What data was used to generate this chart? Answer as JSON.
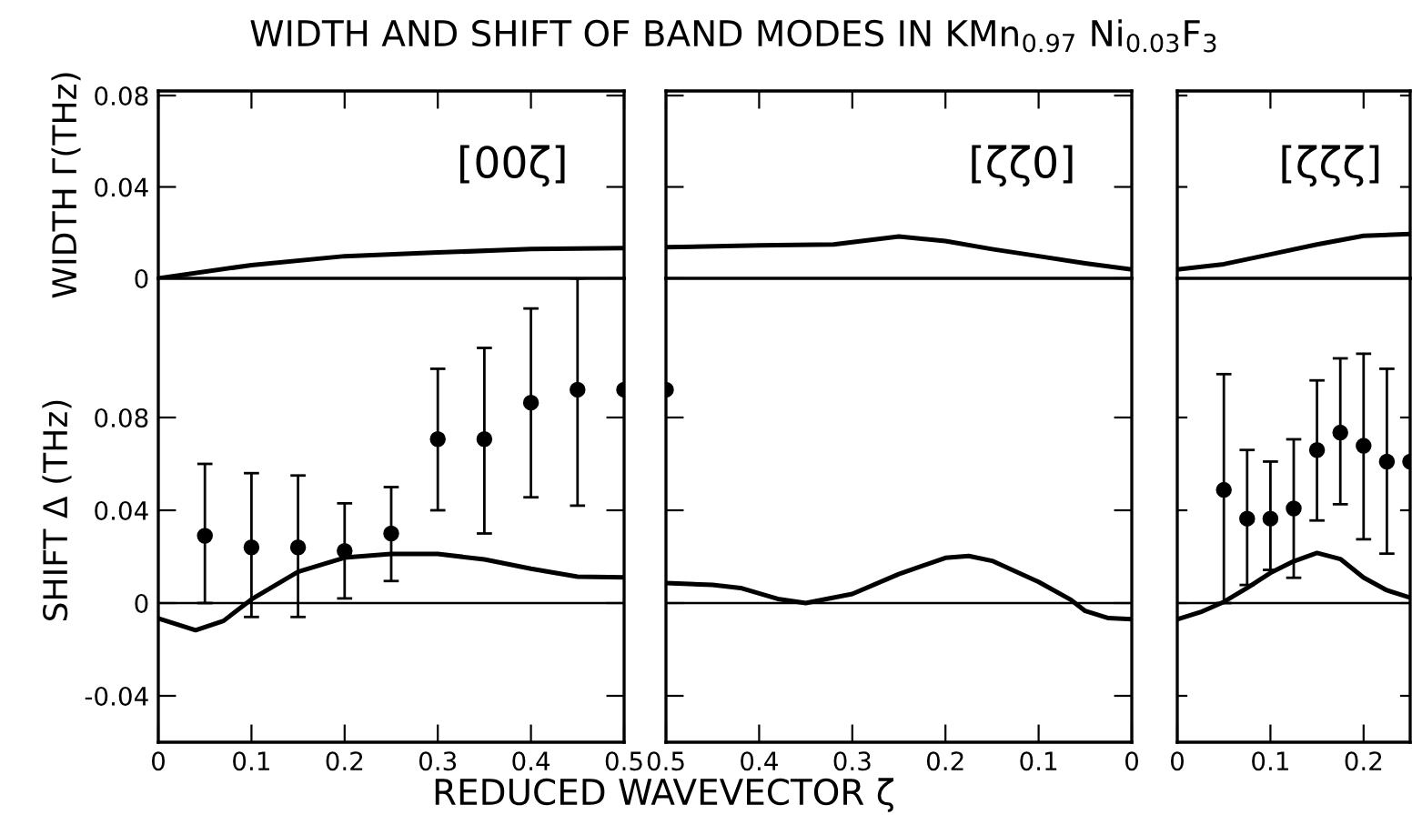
{
  "chart_data": [
    {
      "type": "line",
      "title": "WIDTH AND SHIFT OF BAND MODES IN KMn$_{0.97}$ Ni$_{0.03}$F$_{3}$",
      "ylabel": "WIDTH Γ(THz)",
      "annotations": [
        "[00ζ]"
      ],
      "xlim": [
        0,
        0.5
      ],
      "xticks": [
        0,
        0.1,
        0.2,
        0.3,
        0.4,
        0.5
      ],
      "ylim": [
        0,
        0.082
      ],
      "yticks": [
        0,
        0.04,
        0.08
      ],
      "tick_labels": "y",
      "grid": false,
      "legend": false,
      "series": [
        {
          "color": "#000000",
          "x": [
            0,
            0.1,
            0.2,
            0.3,
            0.4,
            0.5
          ],
          "values": [
            0,
            0.0058,
            0.0097,
            0.0113,
            0.0128,
            0.0132
          ]
        }
      ]
    },
    {
      "type": "line",
      "annotations": [
        "[ζζ0]"
      ],
      "xlim": [
        0.5,
        0
      ],
      "xticks": [
        0.5,
        0.4,
        0.3,
        0.2,
        0.1,
        0
      ],
      "ylim": [
        0,
        0.082
      ],
      "yticks": [
        0,
        0.04,
        0.08
      ],
      "tick_labels": false,
      "grid": false,
      "legend": false,
      "series": [
        {
          "color": "#000000",
          "x": [
            0.5,
            0.4,
            0.32,
            0.25,
            0.2,
            0.15,
            0.1,
            0.05,
            0
          ],
          "values": [
            0.0136,
            0.0144,
            0.0148,
            0.0183,
            0.0163,
            0.0128,
            0.0097,
            0.0066,
            0.0039
          ]
        }
      ]
    },
    {
      "type": "line",
      "annotations": [
        "[ζζζ]"
      ],
      "xlim": [
        0,
        0.25
      ],
      "xticks": [
        0,
        0.1,
        0.2
      ],
      "ylim": [
        0,
        0.082
      ],
      "yticks": [
        0,
        0.04,
        0.08
      ],
      "tick_labels": false,
      "grid": false,
      "legend": false,
      "series": [
        {
          "color": "#000000",
          "x": [
            0,
            0.05,
            0.1,
            0.15,
            0.2,
            0.25
          ],
          "values": [
            0.0039,
            0.0062,
            0.0105,
            0.0148,
            0.0186,
            0.0194
          ]
        }
      ]
    },
    {
      "type": "line",
      "ylabel": "SHIFT Δ (THz)",
      "xlim": [
        0,
        0.5
      ],
      "xticks": [
        0,
        0.1,
        0.2,
        0.3,
        0.4,
        0.5
      ],
      "ylim": [
        -0.06,
        0.14
      ],
      "yticks": [
        -0.04,
        0,
        0.04,
        0.08
      ],
      "grid": false,
      "legend": false,
      "ref_lines": [
        {
          "axis": "y",
          "value": 0,
          "color": "#000000"
        }
      ],
      "series": [
        {
          "color": "#000000",
          "x": [
            0,
            0.04,
            0.07,
            0.1,
            0.15,
            0.2,
            0.25,
            0.3,
            0.35,
            0.4,
            0.45,
            0.5
          ],
          "values": [
            -0.0066,
            -0.0117,
            -0.0077,
            0.0016,
            0.0135,
            0.0196,
            0.0212,
            0.0212,
            0.0188,
            0.0148,
            0.0114,
            0.0111
          ]
        },
        {
          "type": "scatter",
          "marker": "circle",
          "color": "#000000",
          "x": [
            0.05,
            0.1,
            0.15,
            0.2,
            0.25,
            0.3,
            0.35,
            0.4,
            0.45,
            0.5
          ],
          "values": [
            0.029,
            0.024,
            0.024,
            0.0225,
            0.03,
            0.0707,
            0.0707,
            0.0864,
            0.092,
            0.092
          ],
          "errors": [
            [
              0,
              0.06
            ],
            [
              -0.006,
              0.056
            ],
            [
              -0.006,
              0.055
            ],
            [
              0.002,
              0.043
            ],
            [
              0.0095,
              0.05
            ],
            [
              0.04,
              0.101
            ],
            [
              0.03,
              0.11
            ],
            [
              0.0456,
              0.127
            ],
            [
              0.042,
              0.14
            ],
            null
          ]
        }
      ]
    },
    {
      "type": "line",
      "xlabel": "REDUCED WAVEVECTOR ζ",
      "xlim": [
        0.5,
        0
      ],
      "xticks": [
        0.5,
        0.4,
        0.3,
        0.2,
        0.1,
        0
      ],
      "ylim": [
        -0.06,
        0.14
      ],
      "yticks": [
        -0.04,
        0,
        0.04,
        0.08
      ],
      "tick_labels": "x",
      "grid": false,
      "legend": false,
      "ref_lines": [
        {
          "axis": "y",
          "value": 0,
          "color": "#000000"
        }
      ],
      "series": [
        {
          "color": "#000000",
          "x": [
            0.5,
            0.45,
            0.42,
            0.38,
            0.35,
            0.3,
            0.25,
            0.2,
            0.175,
            0.15,
            0.1,
            0.065,
            0.05,
            0.025,
            0
          ],
          "values": [
            0.0086,
            0.0078,
            0.0065,
            0.0018,
            0,
            0.0039,
            0.0125,
            0.0195,
            0.0203,
            0.0182,
            0.0091,
            0.0013,
            -0.0034,
            -0.0065,
            -0.007
          ]
        },
        {
          "type": "scatter",
          "marker": "circle",
          "color": "#000000",
          "x": [
            0.5
          ],
          "values": [
            0.092
          ]
        }
      ]
    },
    {
      "type": "line",
      "xlim": [
        0,
        0.25
      ],
      "xticks": [
        0,
        0.1,
        0.2
      ],
      "ylim": [
        -0.06,
        0.14
      ],
      "yticks": [
        -0.04,
        0,
        0.04,
        0.08
      ],
      "tick_labels": "x",
      "grid": false,
      "legend": false,
      "ref_lines": [
        {
          "axis": "y",
          "value": 0,
          "color": "#000000"
        }
      ],
      "series": [
        {
          "color": "#000000",
          "x": [
            0,
            0.025,
            0.05,
            0.075,
            0.1,
            0.125,
            0.15,
            0.175,
            0.2,
            0.225,
            0.248
          ],
          "values": [
            -0.007,
            -0.0039,
            0.0005,
            0.0065,
            0.013,
            0.018,
            0.0216,
            0.019,
            0.011,
            0.0055,
            0.0026
          ]
        },
        {
          "type": "scatter",
          "marker": "circle",
          "color": "#000000",
          "x": [
            0.05,
            0.075,
            0.1,
            0.125,
            0.15,
            0.175,
            0.2,
            0.225,
            0.25
          ],
          "values": [
            0.0488,
            0.0364,
            0.0364,
            0.0408,
            0.066,
            0.0735,
            0.0678,
            0.061,
            0.061
          ],
          "errors": [
            [
              0,
              0.0987
            ],
            [
              0.0078,
              0.066
            ],
            [
              0.0143,
              0.061
            ],
            [
              0.0109,
              0.0706
            ],
            [
              0.0356,
              0.096
            ],
            [
              0.0426,
              0.1055
            ],
            [
              0.0275,
              0.1075
            ],
            [
              0.0213,
              0.101
            ],
            null
          ]
        }
      ]
    }
  ]
}
